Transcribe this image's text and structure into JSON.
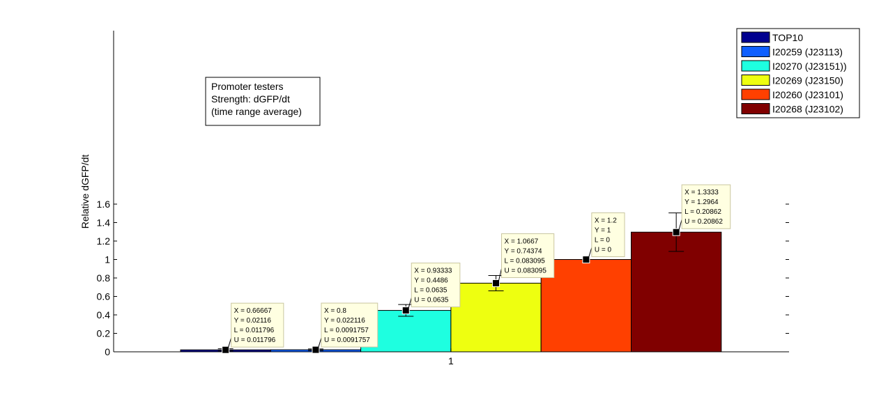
{
  "chart_data": {
    "type": "bar",
    "ylabel": "Relative dGFP/dt",
    "xlabel": "",
    "x_ticks": [
      "1"
    ],
    "ylim": [
      0,
      1.75
    ],
    "yticks": [
      0,
      0.2,
      0.4,
      0.6,
      0.8,
      1,
      1.2,
      1.4,
      1.6
    ],
    "ytick_labels": [
      "0",
      "0.2",
      "0.4",
      "0.6",
      "0.8",
      "1",
      "1.2",
      "1.4",
      "1.6"
    ],
    "legend_position": "top-right",
    "grid": false,
    "annotation": [
      "Promoter testers",
      "Strength: dGFP/dt",
      "(time range average)"
    ],
    "series": [
      {
        "name": "TOP10",
        "color": "#00008f",
        "value": 0.02116,
        "error": 0.011796,
        "datatip": [
          "X = 0.66667",
          "Y = 0.02116",
          "L = 0.011796",
          "U = 0.011796"
        ]
      },
      {
        "name": "I20259 (J23113)",
        "color": "#0f5fff",
        "value": 0.022116,
        "error": 0.0091757,
        "datatip": [
          "X = 0.8",
          "Y = 0.022116",
          "L = 0.0091757",
          "U = 0.0091757"
        ]
      },
      {
        "name": "I20270 (J23151))",
        "color": "#1effe0",
        "value": 0.4486,
        "error": 0.0635,
        "datatip": [
          "X = 0.93333",
          "Y = 0.4486",
          "L = 0.0635",
          "U = 0.0635"
        ]
      },
      {
        "name": "I20269 (J23150)",
        "color": "#eeff10",
        "value": 0.74374,
        "error": 0.083095,
        "datatip": [
          "X = 1.0667",
          "Y = 0.74374",
          "L = 0.083095",
          "U = 0.083095"
        ]
      },
      {
        "name": "I20260 (J23101)",
        "color": "#ff4000",
        "value": 1,
        "error": 0,
        "datatip": [
          "X = 1.2",
          "Y = 1",
          "L = 0",
          "U = 0"
        ]
      },
      {
        "name": "I20268 (J23102)",
        "color": "#800000",
        "value": 1.2964,
        "error": 0.20862,
        "datatip": [
          "X = 1.3333",
          "Y = 1.2964",
          "L = 0.20862",
          "U = 0.20862"
        ]
      }
    ]
  }
}
